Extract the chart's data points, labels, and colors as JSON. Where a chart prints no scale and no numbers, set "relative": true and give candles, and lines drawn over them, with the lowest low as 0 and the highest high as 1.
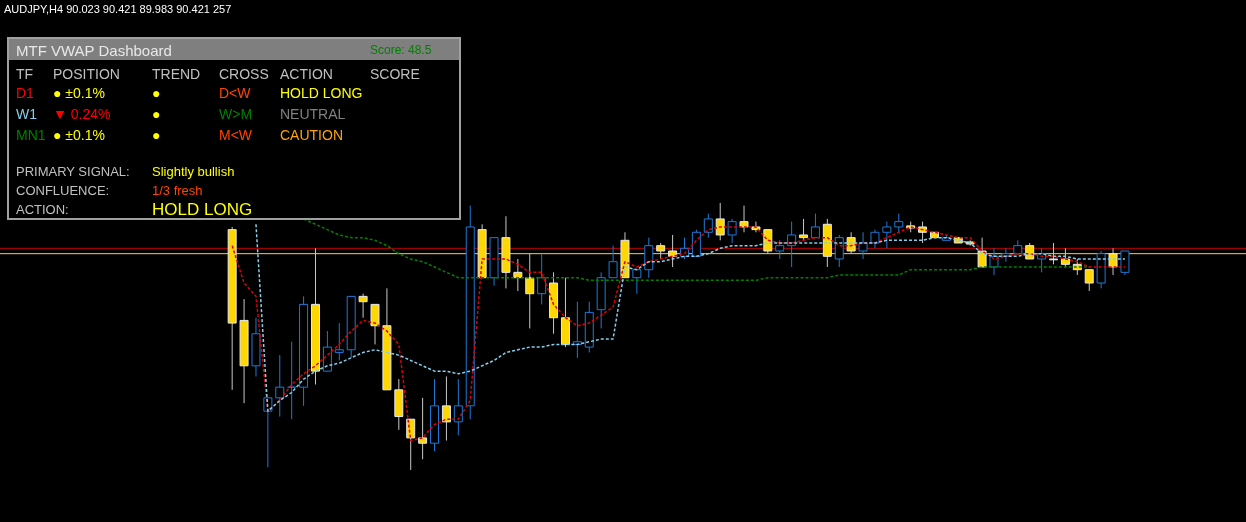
{
  "chart_data": [
    {
      "type": "candlestick",
      "title": "AUDJPY,H4  90.023 90.421 89.983 90.421  257",
      "relative": true,
      "categories": [
        null,
        null,
        null,
        null,
        null,
        null,
        null,
        null,
        null,
        null,
        null,
        null,
        null,
        null,
        null,
        null,
        null,
        null,
        null,
        null,
        null,
        null,
        null,
        null,
        null,
        null,
        null,
        null,
        null,
        null,
        null,
        null,
        null,
        null,
        null,
        null,
        null,
        null,
        null,
        null,
        null,
        null,
        null,
        null,
        null,
        null,
        null,
        null,
        null,
        null,
        null,
        null,
        null,
        null,
        null,
        null,
        null,
        null,
        null,
        null,
        null,
        null,
        null,
        null,
        null,
        null,
        null,
        null,
        null,
        null,
        null,
        null,
        null,
        null,
        null,
        null
      ],
      "colors": [
        "#ffd700",
        "#ffd700",
        "#1e78d7",
        "#1e78d7",
        "#1e78d7",
        "#1e78d7",
        "#1e78d7",
        "#ffd700",
        "#1e78d7",
        "#1e78d7",
        "#1e78d7",
        "#ffd700",
        "#ffd700",
        "#ffd700",
        "#ffd700",
        "#ffd700",
        "#ffd700",
        "#1e78d7",
        "#ffd700",
        "#1e78d7",
        "#1e78d7",
        "#ffd700",
        "#1e78d7",
        "#ffd700",
        "#ffd700",
        "#ffd700",
        "#1e78d7",
        "#ffd700",
        "#ffd700",
        "#1e78d7",
        "#1e78d7",
        "#1e78d7",
        "#1e78d7",
        "#ffd700",
        "#1e78d7",
        "#1e78d7",
        "#ffd700",
        "#ffd700",
        "#1e78d7",
        "#1e78d7",
        "#1e78d7",
        "#ffd700",
        "#1e78d7",
        "#ffd700",
        "#ffd700",
        "#ffd700",
        "#1e78d7",
        "#1e78d7",
        "#ffd700",
        "#1e78d7",
        "#ffd700",
        "#1e78d7",
        "#ffd700",
        "#1e78d7",
        "#1e78d7",
        "#1e78d7",
        "#1e78d7",
        "#ffd700",
        "#ffd700",
        "#ffd700",
        "#1e78d7",
        "#ffd700",
        "#ffd700",
        "#ffd700",
        "#1e78d7",
        "#1e78d7",
        "#1e78d7",
        "#ffd700",
        "#1e78d7",
        "#ffd700",
        "#ffd700",
        "#ffd700",
        "#ffd700",
        "#1e78d7",
        "#ffd700",
        "#1e78d7"
      ],
      "ohlc": [
        [
          0.9,
          0.91,
          0.3,
          0.55
        ],
        [
          0.56,
          0.64,
          0.25,
          0.39
        ],
        [
          0.39,
          0.57,
          0.35,
          0.51
        ],
        [
          0.22,
          0.27,
          0.01,
          0.27
        ],
        [
          0.27,
          0.43,
          0.2,
          0.31
        ],
        [
          0.31,
          0.48,
          0.19,
          0.31
        ],
        [
          0.31,
          0.65,
          0.24,
          0.62
        ],
        [
          0.62,
          0.83,
          0.32,
          0.37
        ],
        [
          0.37,
          0.52,
          0.37,
          0.46
        ],
        [
          0.44,
          0.55,
          0.41,
          0.45
        ],
        [
          0.45,
          0.65,
          0.42,
          0.65
        ],
        [
          0.65,
          0.66,
          0.57,
          0.63
        ],
        [
          0.62,
          0.62,
          0.47,
          0.54
        ],
        [
          0.54,
          0.68,
          0.3,
          0.3
        ],
        [
          0.3,
          0.34,
          0.15,
          0.2
        ],
        [
          0.19,
          0.19,
          0,
          0.12
        ],
        [
          0.12,
          0.27,
          0.04,
          0.1
        ],
        [
          0.1,
          0.34,
          0.07,
          0.24
        ],
        [
          0.24,
          0.35,
          0.11,
          0.18
        ],
        [
          0.18,
          0.34,
          0.13,
          0.24
        ],
        [
          0.24,
          0.99,
          0.19,
          0.91
        ],
        [
          0.9,
          0.92,
          0.72,
          0.72
        ],
        [
          0.72,
          0.87,
          0.69,
          0.87
        ],
        [
          0.87,
          0.95,
          0.68,
          0.74
        ],
        [
          0.74,
          0.79,
          0.67,
          0.72
        ],
        [
          0.72,
          0.81,
          0.53,
          0.66
        ],
        [
          0.66,
          0.81,
          0.62,
          0.72
        ],
        [
          0.7,
          0.74,
          0.51,
          0.57
        ],
        [
          0.57,
          0.72,
          0.46,
          0.47
        ],
        [
          0.47,
          0.63,
          0.42,
          0.48
        ],
        [
          0.46,
          0.63,
          0.44,
          0.59
        ],
        [
          0.6,
          0.74,
          0.53,
          0.72
        ],
        [
          0.72,
          0.84,
          0.72,
          0.78
        ],
        [
          0.86,
          0.89,
          0.72,
          0.72
        ],
        [
          0.72,
          0.75,
          0.66,
          0.75
        ],
        [
          0.75,
          0.87,
          0.72,
          0.84
        ],
        [
          0.84,
          0.85,
          0.79,
          0.82
        ],
        [
          0.82,
          0.88,
          0.76,
          0.8
        ],
        [
          0.8,
          0.87,
          0.79,
          0.83
        ],
        [
          0.8,
          0.9,
          0.8,
          0.89
        ],
        [
          0.89,
          0.96,
          0.87,
          0.94
        ],
        [
          0.94,
          1,
          0.86,
          0.88
        ],
        [
          0.88,
          0.94,
          0.85,
          0.93
        ],
        [
          0.93,
          0.99,
          0.89,
          0.91
        ],
        [
          0.91,
          0.93,
          0.89,
          0.9
        ],
        [
          0.9,
          0.9,
          0.81,
          0.82
        ],
        [
          0.82,
          0.86,
          0.79,
          0.84
        ],
        [
          0.84,
          0.93,
          0.76,
          0.88
        ],
        [
          0.88,
          0.94,
          0.86,
          0.87
        ],
        [
          0.87,
          0.96,
          0.87,
          0.91
        ],
        [
          0.92,
          0.94,
          0.76,
          0.8
        ],
        [
          0.79,
          0.88,
          0.76,
          0.87
        ],
        [
          0.87,
          0.89,
          0.81,
          0.82
        ],
        [
          0.82,
          0.89,
          0.79,
          0.85
        ],
        [
          0.85,
          0.9,
          0.83,
          0.89
        ],
        [
          0.89,
          0.93,
          0.83,
          0.91
        ],
        [
          0.91,
          0.96,
          0.89,
          0.93
        ],
        [
          0.914,
          0.93,
          0.89,
          0.906
        ],
        [
          0.91,
          0.93,
          0.85,
          0.89
        ],
        [
          0.89,
          0.89,
          0.87,
          0.87
        ],
        [
          0.86,
          0.88,
          0.86,
          0.87
        ],
        [
          0.87,
          0.87,
          0.85,
          0.85
        ],
        [
          0.854,
          0.86,
          0.84,
          0.846
        ],
        [
          0.82,
          0.87,
          0.76,
          0.76
        ],
        [
          0.76,
          0.83,
          0.73,
          0.8
        ],
        [
          0.8,
          0.83,
          0.78,
          0.81
        ],
        [
          0.81,
          0.86,
          0.81,
          0.84
        ],
        [
          0.84,
          0.85,
          0.79,
          0.79
        ],
        [
          0.79,
          0.83,
          0.74,
          0.81
        ],
        [
          0.79,
          0.85,
          0.77,
          0.787
        ],
        [
          0.79,
          0.83,
          0.76,
          0.77
        ],
        [
          0.77,
          0.79,
          0.73,
          0.75
        ],
        [
          0.75,
          0.75,
          0.67,
          0.7
        ],
        [
          0.7,
          0.82,
          0.68,
          0.81
        ],
        [
          0.81,
          0.83,
          0.73,
          0.76
        ],
        [
          0.74,
          0.82,
          0.73,
          0.82
        ]
      ],
      "series": [
        {
          "type": "line",
          "color": "#008000",
          "line_style": "dashed",
          "values": [
            null,
            null,
            null,
            null,
            null,
            null,
            0.94,
            0.92,
            0.9,
            0.88,
            0.87,
            0.87,
            0.86,
            0.84,
            0.81,
            0.79,
            0.78,
            0.76,
            0.74,
            0.72,
            0.72,
            0.72,
            0.72,
            0.72,
            0.72,
            0.72,
            0.72,
            0.72,
            0.72,
            0.72,
            0.71,
            0.71,
            0.71,
            0.71,
            0.71,
            0.71,
            0.71,
            0.71,
            0.71,
            0.71,
            0.71,
            0.71,
            0.71,
            0.71,
            0.71,
            0.72,
            0.72,
            0.72,
            0.72,
            0.72,
            0.72,
            0.73,
            0.73,
            0.73,
            0.73,
            0.73,
            0.73,
            0.75,
            0.75,
            0.75,
            0.75,
            0.75,
            0.75,
            0.76,
            0.76,
            0.76,
            0.76,
            0.76,
            0.76,
            0.76,
            0.76,
            0.76,
            0.76,
            null,
            null,
            null
          ]
        },
        {
          "type": "line",
          "color": "#e00000",
          "line_style": "dashed",
          "values": [
            0.84,
            0.7,
            0.65,
            0.22,
            0.26,
            0.32,
            0.36,
            0.39,
            0.43,
            0.47,
            0.52,
            0.56,
            0.55,
            0.52,
            0.47,
            0.11,
            0.12,
            0.17,
            0.19,
            0.19,
            0.26,
            0.79,
            0.79,
            0.79,
            0.77,
            0.74,
            0.74,
            0.62,
            0.57,
            0.54,
            0.55,
            0.58,
            0.61,
            0.78,
            0.76,
            0.78,
            0.79,
            0.8,
            0.81,
            0.86,
            0.9,
            0.91,
            0.91,
            0.91,
            0.91,
            0.86,
            0.85,
            0.85,
            0.86,
            0.87,
            0.87,
            0.84,
            0.84,
            0.85,
            0.85,
            0.87,
            0.89,
            0.91,
            0.9,
            0.89,
            0.88,
            0.87,
            0.87,
            0.82,
            0.79,
            0.8,
            0.81,
            0.81,
            0.8,
            0.8,
            0.79,
            0.78,
            0.76,
            0.76,
            0.76,
            0.76
          ]
        },
        {
          "type": "line",
          "color": "#87ceeb",
          "line_style": "dashed",
          "values": [
            null,
            null,
            0.92,
            0.22,
            0.26,
            0.29,
            0.34,
            0.37,
            0.39,
            0.4,
            0.42,
            0.44,
            0.45,
            0.44,
            0.43,
            0.41,
            0.39,
            0.37,
            0.37,
            0.36,
            0.37,
            0.39,
            0.41,
            0.44,
            0.45,
            0.46,
            0.46,
            0.47,
            0.47,
            0.47,
            0.48,
            0.49,
            0.49,
            0.76,
            0.75,
            0.78,
            0.78,
            0.79,
            0.8,
            0.8,
            0.81,
            0.83,
            0.84,
            0.84,
            0.84,
            0.85,
            0.85,
            0.85,
            0.85,
            0.85,
            0.85,
            0.85,
            0.85,
            0.85,
            0.85,
            0.86,
            0.86,
            0.86,
            0.86,
            0.87,
            0.87,
            0.86,
            0.85,
            0.81,
            0.8,
            0.8,
            0.8,
            0.81,
            0.81,
            0.8,
            0.8,
            0.79,
            0.79,
            0.79,
            0.79,
            0.79
          ]
        }
      ],
      "ref_lines": [
        {
          "axis": "y",
          "value": 0.83,
          "color": "#c00000"
        },
        {
          "axis": "y",
          "value": 0.81,
          "color": "#ffd700"
        }
      ]
    },
    {
      "type": "other",
      "title": "MTF VWAP Dashboard",
      "subtitle": "Score: 48.5",
      "annotations": [
        "TF",
        "POSITION",
        "TREND",
        "CROSS",
        "ACTION",
        "SCORE",
        "D1",
        "● ±0.1%",
        "●",
        "D<W",
        "HOLD LONG",
        "W1",
        "▼ 0.24%",
        "●",
        "W>M",
        "NEUTRAL",
        "MN1",
        "● ±0.1%",
        "●",
        "M<W",
        "CAUTION",
        "PRIMARY SIGNAL:",
        "Slightly bullish",
        "CONFLUENCE:",
        "1/3 fresh",
        "ACTION:",
        "HOLD LONG"
      ],
      "colors": [
        "#c0c0c0",
        "#c0c0c0",
        "#c0c0c0",
        "#c0c0c0",
        "#c0c0c0",
        "#c0c0c0",
        "#ff0000",
        "#ffff00",
        "#ffff00",
        "#ff4500",
        "#ffff00",
        "#87ceeb",
        "#ff0000",
        "#ffff00",
        "#008000",
        "#808080",
        "#008000",
        "#ffff00",
        "#ffff00",
        "#ff4500",
        "#ffa500",
        "#c0c0c0",
        "#ffff00",
        "#c0c0c0",
        "#ff4500",
        "#c0c0c0",
        "#ffff00"
      ]
    }
  ]
}
